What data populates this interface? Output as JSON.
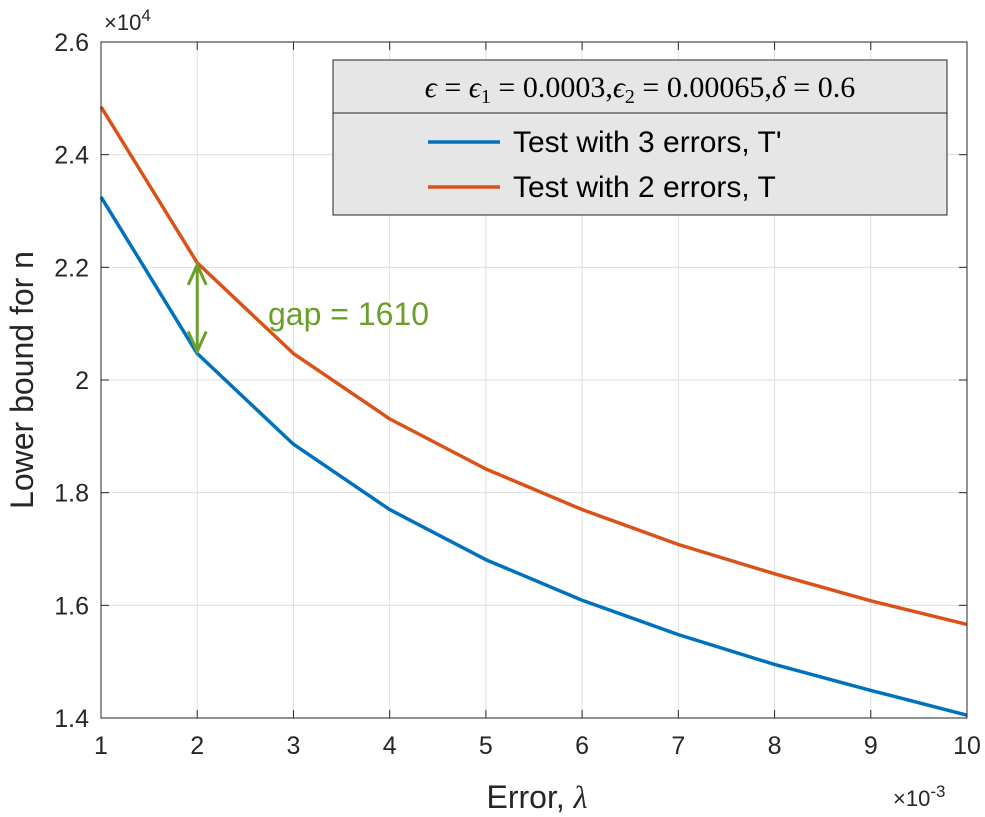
{
  "chart_data": {
    "type": "line",
    "xlabel_text": "Error, ",
    "xlabel_symbol": "λ",
    "ylabel": "Lower bound for n",
    "x_exponent_prefix": "×10",
    "x_exponent": "-3",
    "y_exponent_prefix": "×10",
    "y_exponent": "4",
    "x": [
      1,
      2,
      3,
      4,
      5,
      6,
      7,
      8,
      9,
      10
    ],
    "xlim": [
      1,
      10
    ],
    "ylim": [
      1.4,
      2.6
    ],
    "x_ticks": [
      "1",
      "2",
      "3",
      "4",
      "5",
      "6",
      "7",
      "8",
      "9",
      "10"
    ],
    "y_ticks": [
      "1.4",
      "1.6",
      "1.8",
      "2",
      "2.2",
      "2.4",
      "2.6"
    ],
    "grid": true,
    "legend_position": "top-right",
    "legend_title": {
      "eps": "ϵ",
      "eps1": "ϵ",
      "eps1_sub": "1",
      "eps1_val": "0.0003",
      "eps2": "ϵ",
      "eps2_sub": "2",
      "eps2_val": "0.00065",
      "delta": "δ",
      "delta_val": "0.6",
      "eq": " = ",
      "comma": ","
    },
    "series": [
      {
        "name": "Test with 3 errors, T'",
        "color": "#0072BD",
        "values": [
          2.325,
          2.047,
          1.886,
          1.77,
          1.681,
          1.609,
          1.548,
          1.495,
          1.449,
          1.405
        ]
      },
      {
        "name": "Test with 2 errors, T",
        "color": "#D95319",
        "values": [
          2.485,
          2.208,
          2.047,
          1.931,
          1.842,
          1.77,
          1.708,
          1.656,
          1.608,
          1.566
        ]
      }
    ],
    "annotation": {
      "text": "gap = 1610",
      "color": "#6B9E2A",
      "x": 2,
      "y_from": 2.047,
      "y_to": 2.208
    }
  }
}
